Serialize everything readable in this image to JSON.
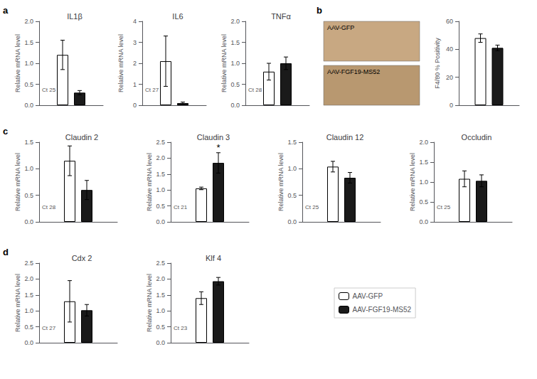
{
  "chart_data": [
    {
      "type": "bar",
      "title": "IL1β",
      "categories": [
        null
      ],
      "series": [
        {
          "name": "AAV-GFP",
          "color": "#ffffff",
          "values": [
            1.2
          ],
          "errors": [
            0.35
          ]
        },
        {
          "name": "AAV-FGF19-MS52",
          "color": "#1a1a1a",
          "values": [
            0.3
          ],
          "errors": [
            0.05
          ]
        }
      ],
      "ylabel": "Relative mRNA level",
      "ylim": [
        0,
        2.0
      ],
      "yticks": [
        {
          "value": 0,
          "label": "0.0"
        },
        0.5,
        {
          "value": 1.0,
          "label": "1.0"
        },
        1.5,
        {
          "value": 2.0,
          "label": "2.0"
        }
      ],
      "grid": false,
      "tick_labels": "y",
      "annotations": [
        {
          "text": "Ct 25"
        },
        {
          "text": "a",
          "kind": "panel"
        }
      ]
    },
    {
      "type": "bar",
      "title": "IL6",
      "categories": [
        null
      ],
      "series": [
        {
          "name": "AAV-GFP",
          "color": "#ffffff",
          "values": [
            2.1
          ],
          "errors": [
            1.2
          ]
        },
        {
          "name": "AAV-FGF19-MS52",
          "color": "#1a1a1a",
          "values": [
            0.1
          ],
          "errors": [
            0.05
          ]
        }
      ],
      "ylabel": "Relative mRNA level",
      "ylim": [
        0,
        4.0
      ],
      "yticks": [
        0,
        1,
        2,
        3,
        4
      ],
      "grid": false,
      "tick_labels": "y",
      "annotations": [
        {
          "text": "Ct 27"
        }
      ]
    },
    {
      "type": "bar",
      "title": "TNFα",
      "categories": [
        null
      ],
      "series": [
        {
          "name": "AAV-GFP",
          "color": "#ffffff",
          "values": [
            0.8
          ],
          "errors": [
            0.2
          ]
        },
        {
          "name": "AAV-FGF19-MS52",
          "color": "#1a1a1a",
          "values": [
            1.0
          ],
          "errors": [
            0.15
          ]
        }
      ],
      "ylabel": "Relative mRNA level",
      "ylim": [
        0,
        2.0
      ],
      "yticks": [
        {
          "value": 0,
          "label": "0.0"
        },
        0.5,
        {
          "value": 1.0,
          "label": "1.0"
        },
        1.5,
        {
          "value": 2.0,
          "label": "2.0"
        }
      ],
      "grid": false,
      "tick_labels": "y",
      "annotations": [
        {
          "text": "Ct 28"
        }
      ]
    },
    {
      "type": "bar",
      "categories": [
        null
      ],
      "series": [
        {
          "name": "AAV-GFP",
          "color": "#ffffff",
          "values": [
            48
          ],
          "errors": [
            3
          ]
        },
        {
          "name": "AAV-FGF19-MS52",
          "color": "#1a1a1a",
          "values": [
            41
          ],
          "errors": [
            2
          ]
        }
      ],
      "ylabel": "F4/80 % Positivity",
      "ylim": [
        0,
        60
      ],
      "yticks": [
        0,
        20,
        40,
        60
      ],
      "grid": false,
      "tick_labels": "y",
      "annotations": [
        {
          "text": "b",
          "kind": "panel"
        },
        {
          "text": "AAV-GFP",
          "kind": "image",
          "color": "#c8a882"
        },
        {
          "text": "AAV-FGF19-MS52",
          "kind": "image",
          "color": "#b89870"
        }
      ]
    },
    {
      "type": "bar",
      "title": "Claudin 2",
      "categories": [
        null
      ],
      "series": [
        {
          "name": "AAV-GFP",
          "color": "#ffffff",
          "values": [
            1.15
          ],
          "errors": [
            0.28
          ]
        },
        {
          "name": "AAV-FGF19-MS52",
          "color": "#1a1a1a",
          "values": [
            0.6
          ],
          "errors": [
            0.18
          ]
        }
      ],
      "ylabel": "Relative mRNA level",
      "ylim": [
        0,
        1.5
      ],
      "yticks": [
        {
          "value": 0,
          "label": "0.0"
        },
        0.5,
        {
          "value": 1.0,
          "label": "1.0"
        },
        1.5
      ],
      "grid": false,
      "tick_labels": "y",
      "annotations": [
        {
          "text": "Ct 28"
        },
        {
          "text": "c",
          "kind": "panel"
        }
      ]
    },
    {
      "type": "bar",
      "title": "Claudin 3",
      "categories": [
        null
      ],
      "series": [
        {
          "name": "AAV-GFP",
          "color": "#ffffff",
          "values": [
            1.05
          ],
          "errors": [
            0.04
          ]
        },
        {
          "name": "AAV-FGF19-MS52",
          "color": "#1a1a1a",
          "values": [
            1.85
          ],
          "errors": [
            0.32
          ]
        }
      ],
      "ylabel": "Relative mRNA level",
      "ylim": [
        0,
        2.5
      ],
      "yticks": [
        {
          "value": 0,
          "label": "0.0"
        },
        0.5,
        {
          "value": 1.0,
          "label": "1.0"
        },
        1.5,
        {
          "value": 2.0,
          "label": "2.0"
        },
        2.5
      ],
      "grid": false,
      "tick_labels": "y",
      "annotations": [
        {
          "text": "Ct 21"
        },
        {
          "text": "*",
          "series": "AAV-FGF19-MS52"
        }
      ]
    },
    {
      "type": "bar",
      "title": "Claudin 12",
      "categories": [
        null
      ],
      "series": [
        {
          "name": "AAV-GFP",
          "color": "#ffffff",
          "values": [
            1.04
          ],
          "errors": [
            0.1
          ]
        },
        {
          "name": "AAV-FGF19-MS52",
          "color": "#1a1a1a",
          "values": [
            0.83
          ],
          "errors": [
            0.1
          ]
        }
      ],
      "ylabel": "Relative mRNA level",
      "ylim": [
        0,
        1.5
      ],
      "yticks": [
        {
          "value": 0,
          "label": "0.0"
        },
        0.5,
        {
          "value": 1.0,
          "label": "1.0"
        },
        1.5
      ],
      "grid": false,
      "tick_labels": "y",
      "annotations": [
        {
          "text": "Ct 25"
        }
      ]
    },
    {
      "type": "bar",
      "title": "Occludin",
      "categories": [
        null
      ],
      "series": [
        {
          "name": "AAV-GFP",
          "color": "#ffffff",
          "values": [
            1.08
          ],
          "errors": [
            0.2
          ]
        },
        {
          "name": "AAV-FGF19-MS52",
          "color": "#1a1a1a",
          "values": [
            1.03
          ],
          "errors": [
            0.15
          ]
        }
      ],
      "ylabel": "Relative mRNA level",
      "ylim": [
        0,
        2.0
      ],
      "yticks": [
        {
          "value": 0,
          "label": "0.0"
        },
        0.5,
        {
          "value": 1.0,
          "label": "1.0"
        },
        1.5,
        {
          "value": 2.0,
          "label": "2.0"
        }
      ],
      "grid": false,
      "tick_labels": "y",
      "annotations": [
        {
          "text": "Ct 25"
        }
      ]
    },
    {
      "type": "bar",
      "title": "Cdx 2",
      "categories": [
        null
      ],
      "series": [
        {
          "name": "AAV-GFP",
          "color": "#ffffff",
          "values": [
            1.3
          ],
          "errors": [
            0.65
          ]
        },
        {
          "name": "AAV-FGF19-MS52",
          "color": "#1a1a1a",
          "values": [
            1.02
          ],
          "errors": [
            0.18
          ]
        }
      ],
      "ylabel": "Relative mRNA level",
      "ylim": [
        0,
        2.5
      ],
      "yticks": [
        {
          "value": 0,
          "label": "0.0"
        },
        0.5,
        {
          "value": 1.0,
          "label": "1.0"
        },
        1.5,
        {
          "value": 2.0,
          "label": "2.0"
        },
        2.5
      ],
      "grid": false,
      "tick_labels": "y",
      "annotations": [
        {
          "text": "Ct 27"
        },
        {
          "text": "d",
          "kind": "panel"
        }
      ]
    },
    {
      "type": "bar",
      "title": "Klf 4",
      "categories": [
        null
      ],
      "series": [
        {
          "name": "AAV-GFP",
          "color": "#ffffff",
          "values": [
            1.4
          ],
          "errors": [
            0.2
          ]
        },
        {
          "name": "AAV-FGF19-MS52",
          "color": "#1a1a1a",
          "values": [
            1.93
          ],
          "errors": [
            0.12
          ]
        }
      ],
      "ylabel": "Relative mRNA level",
      "ylim": [
        0,
        2.5
      ],
      "yticks": [
        {
          "value": 0,
          "label": "0.0"
        },
        0.5,
        {
          "value": 1.0,
          "label": "1.0"
        },
        1.5,
        {
          "value": 2.0,
          "label": "2.0"
        },
        2.5
      ],
      "grid": false,
      "tick_labels": "y",
      "legend": "lower right",
      "annotations": [
        {
          "text": "Ct 23"
        }
      ]
    }
  ]
}
